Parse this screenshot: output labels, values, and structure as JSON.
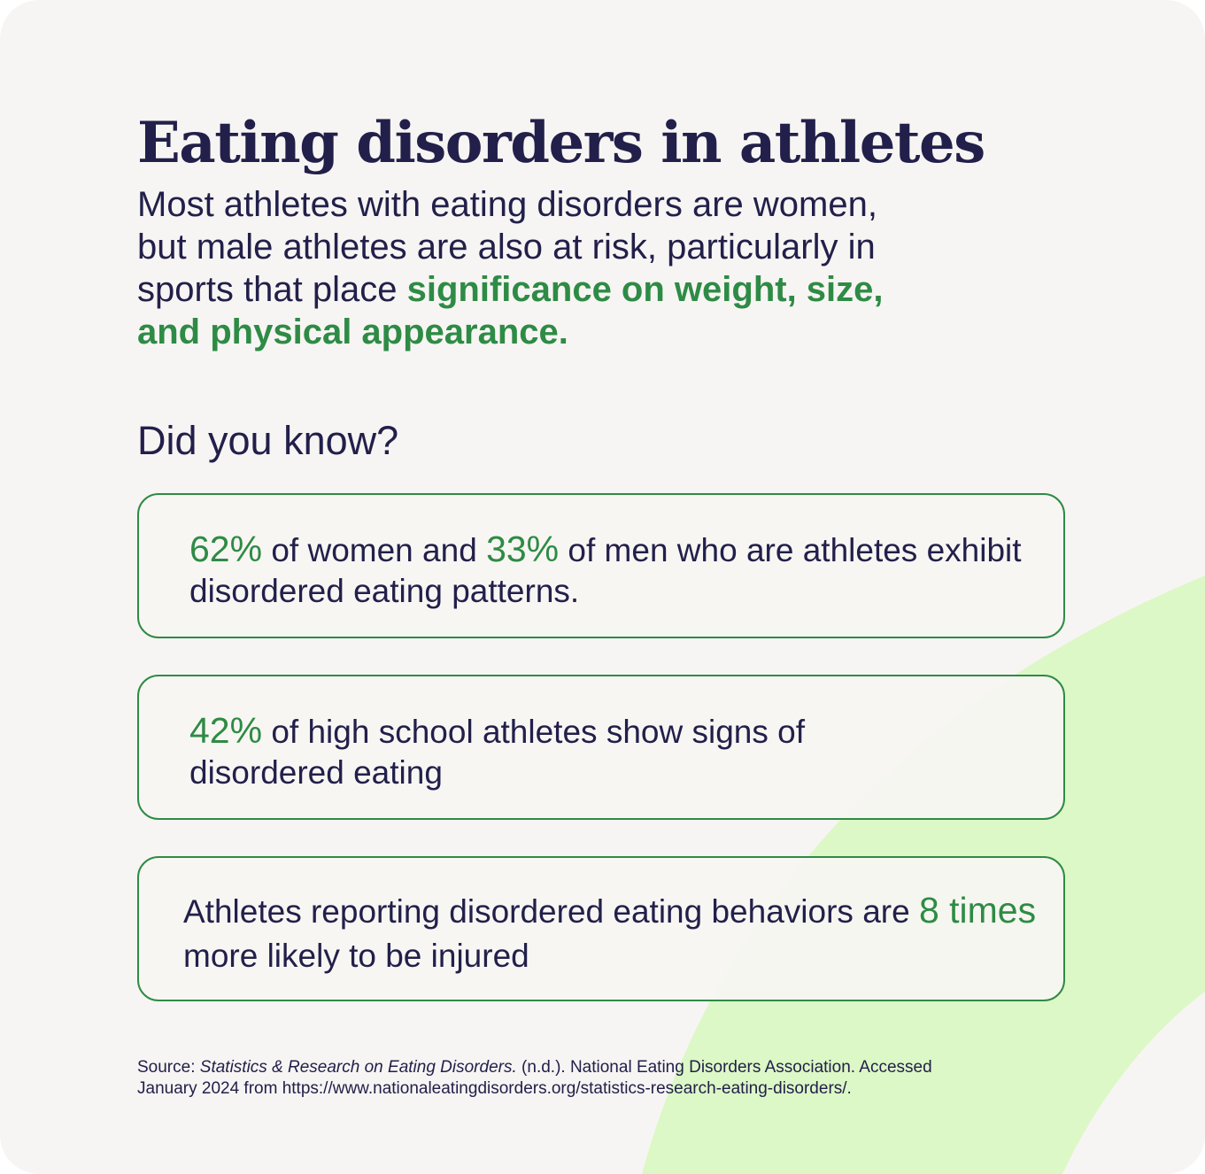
{
  "colors": {
    "background": "#f7f5f3",
    "text": "#22204a",
    "accent_green": "#2e8b45",
    "decor_lime": "#dcf8c6"
  },
  "title": "Eating disorders in athletes",
  "intro": {
    "plain": "Most athletes with eating disorders are women, but male athletes are also at risk, particularly in sports that place",
    "highlight": "significance on weight, size, and physical appearance."
  },
  "did_you_know": "Did you know?",
  "facts": [
    {
      "stat1": "62%",
      "text1": "of women and",
      "stat2": "33%",
      "text2": "of men who are athletes exhibit disordered eating patterns."
    },
    {
      "stat1": "42%",
      "text1": "of high school athletes show signs of disordered eating"
    },
    {
      "text1": "Athletes reporting disordered eating behaviors are",
      "stat1": "8 times",
      "text2": "more likely to be injured"
    }
  ],
  "source": {
    "prefix": "Source:",
    "title": "Statistics & Research on Eating Disorders.",
    "rest": "(n.d.). National Eating Disorders Association. Accessed January 2024 from https://www.nationaleatingdisorders.org/statistics-research-eating-disorders/."
  }
}
